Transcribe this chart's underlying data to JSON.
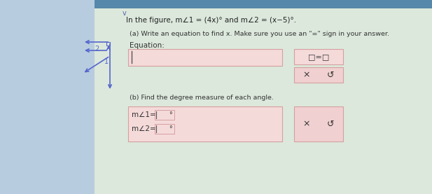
{
  "title_text": "In the figure, m∠1 = (4x)° and m∠2 = (x−5)°.",
  "part_a_label": "(a) Write an equation to find x. Make sure you use an \"=\" sign in your answer.",
  "equation_label": "Equation:",
  "box_a_label": "□=□",
  "x_label": "×",
  "undo_label": "↺",
  "part_b_label": "(b) Find the degree measure of each angle.",
  "angle1_label": "m∠1=",
  "angle2_label": "m∠2=",
  "degree_symbol": "°",
  "bg_main": "#dce8dc",
  "bg_left": "#b8cce0",
  "bg_top_bar": "#5588aa",
  "input_box_bg": "#f5dada",
  "input_box_border": "#d4a0a0",
  "right_box_bg": "#f5dada",
  "right_box_border": "#d4a0a0",
  "ctrl_box_bg": "#f0d0d0",
  "text_color": "#333333",
  "angle_line_color": "#5566cc",
  "title_color": "#222222"
}
